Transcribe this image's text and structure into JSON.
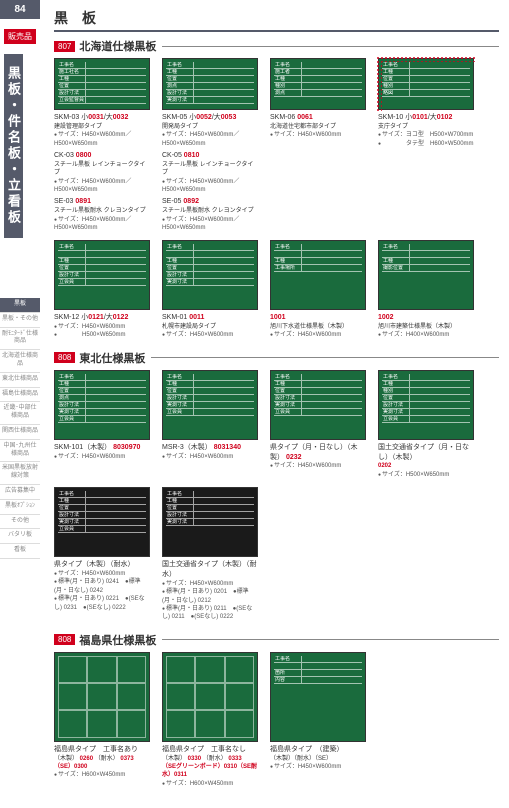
{
  "page_number": "84",
  "sale_tag": "販売品",
  "vertical_title": "黒板・件名板・立看板",
  "page_title": "黒　板",
  "nav": [
    {
      "label": "黒板",
      "active": true
    },
    {
      "label": "黒板・その他"
    },
    {
      "label": "耐ﾓﾆﾀｰﾄﾞ仕様商品"
    },
    {
      "label": "北海道仕様商品"
    },
    {
      "label": "東北仕様商品"
    },
    {
      "label": "福島仕様商品"
    },
    {
      "label": "近畿･中部仕様商品"
    },
    {
      "label": "関西仕様商品"
    },
    {
      "label": "中国･九州仕様商品"
    },
    {
      "label": "米国黒板放射線対策"
    },
    {
      "label": "広告募集中"
    },
    {
      "label": "黒板ｵﾌﾟｼｮﾝ"
    },
    {
      "label": "その他"
    },
    {
      "label": "バタリ板"
    },
    {
      "label": "看板"
    }
  ],
  "sections": [
    {
      "num": "807",
      "title": "北海道仕様黒板",
      "cards": [
        {
          "board": {
            "bg": "green",
            "h": "short",
            "dots": false,
            "rows": [
              "工事名",
              "施工社名",
              "工種",
              "位置",
              "設計寸法",
              "立会監督員"
            ]
          },
          "model": "SKM-03  小",
          "codes": "0031",
          "model2": "/大",
          "codes2": "0032",
          "desc": "建設管理部タイプ",
          "lines": [
            "サイズ：H450×W600mm／H500×W650mm"
          ],
          "sub": [
            {
              "model": "CK-03 ",
              "code": "0800",
              "desc": "スチール黒板 レインチョークタイプ",
              "line": "サイズ：H450×W600mm／H500×W650mm"
            },
            {
              "model": "SE-03 ",
              "code": "0891",
              "desc": "スチール黒板耐水 クレヨンタイプ",
              "line": "サイズ：H450×W600mm／H500×W650mm"
            }
          ]
        },
        {
          "board": {
            "bg": "green",
            "h": "short",
            "dots": false,
            "rows": [
              "工事名",
              "工種",
              "位置",
              "測点",
              "設計寸法",
              "実測寸法"
            ]
          },
          "model": "SKM-05  小",
          "codes": "0052",
          "model2": "/大",
          "codes2": "0053",
          "desc": "開発局タイプ",
          "lines": [
            "サイズ：H450×W600mm／H500×W650mm"
          ],
          "sub": [
            {
              "model": "CK-05 ",
              "code": "0810",
              "desc": "スチール黒板 レインチョークタイプ",
              "line": "サイズ：H450×W600mm／H500×W650mm"
            },
            {
              "model": "SE-05 ",
              "code": "0892",
              "desc": "スチール黒板耐水 クレヨンタイプ",
              "line": "サイズ：H450×W600mm／H500×W650mm"
            }
          ]
        },
        {
          "board": {
            "bg": "green",
            "h": "short",
            "dots": false,
            "rows": [
              "工事名",
              "施工者",
              "工種",
              "種別",
              "測点"
            ]
          },
          "model": "SKM-06  ",
          "codes": "0061",
          "desc": "北海道住宅都市部タイプ",
          "lines": [
            "サイズ：H450×W600mm"
          ]
        },
        {
          "board": {
            "bg": "green",
            "h": "short",
            "dots": true,
            "rows": [
              "工事名",
              "工種",
              "位置",
              "種別",
              "略図"
            ],
            "extra_right": true
          },
          "model": "SKM-10  小",
          "codes": "0101",
          "model2": "/大",
          "codes2": "0102",
          "desc": "支庁タイプ",
          "lines": [
            "サイズ：ヨコ型　H500×W700mm",
            "　　　　タテ型　H600×W500mm"
          ]
        },
        {
          "board": {
            "bg": "green",
            "h": "tall",
            "dots": false,
            "rows": [
              "工事名",
              "",
              "工種",
              "位置",
              "設計寸法",
              "立会員"
            ]
          },
          "model": "SKM-12  小",
          "codes": "0121",
          "model2": "/大",
          "codes2": "0122",
          "lines": [
            "サイズ：H450×W600mm",
            "　　　　H500×W650mm"
          ]
        },
        {
          "board": {
            "bg": "green",
            "h": "tall",
            "dots": false,
            "rows": [
              "工事名",
              "",
              "工種",
              "位置",
              "設計寸法",
              "実測寸法"
            ]
          },
          "model": "SKM-01 ",
          "codes": "0011",
          "desc": "札幌市建設局タイプ",
          "lines": [
            "サイズ：H450×W600mm"
          ]
        },
        {
          "board": {
            "bg": "green",
            "h": "tall",
            "dots": false,
            "rows": [
              "工事名",
              "",
              "工種",
              "工事場所"
            ]
          },
          "model": "",
          "codes": "1001",
          "desc": "旭川下水道仕様黒板（木製）",
          "lines": [
            "サイズ：H450×W600mm"
          ]
        },
        {
          "board": {
            "bg": "green",
            "h": "tall",
            "dots": false,
            "rows": [
              "工事名",
              "",
              "工種",
              "撮影位置"
            ]
          },
          "model": "",
          "codes": "1002",
          "desc": "旭川市建築仕様黒板（木製）",
          "lines": [
            "サイズ：H400×W600mm"
          ]
        }
      ]
    },
    {
      "num": "808",
      "title": "東北仕様黒板",
      "cards": [
        {
          "board": {
            "bg": "green",
            "h": "tall",
            "dots": false,
            "rows": [
              "工事名",
              "工種",
              "位置",
              "測点",
              "設計寸法",
              "実測寸法",
              "立会員"
            ]
          },
          "model": "SKM-101（木製） ",
          "codes": "8030970",
          "lines": [
            "サイズ：H450×W600mm"
          ]
        },
        {
          "board": {
            "bg": "green",
            "h": "tall",
            "dots": false,
            "rows": [
              "工事名",
              "工種",
              "位置",
              "設計寸法",
              "実測寸法",
              "立会員"
            ]
          },
          "model": "MSR-3（木製） ",
          "codes": "8031340",
          "lines": [
            "サイズ：H450×W600mm"
          ]
        },
        {
          "board": {
            "bg": "green",
            "h": "tall",
            "dots": false,
            "rows": [
              "工事名",
              "工種",
              "位置",
              "設計寸法",
              "実測寸法",
              "立会員"
            ]
          },
          "model": "県タイプ（月・日なし）（木製） ",
          "codes": "0232",
          "lines": [
            "サイズ：H450×W600mm"
          ]
        },
        {
          "board": {
            "bg": "green",
            "h": "tall",
            "dots": false,
            "rows": [
              "工事名",
              "工種",
              "種別",
              "位置",
              "設計寸法",
              "実測寸法",
              "立会員"
            ]
          },
          "model": "国土交通省タイプ（月・日なし）（木製）",
          "lines": [
            "サイズ：H500×W650mm"
          ],
          "model2_line": "0202"
        },
        {
          "board": {
            "bg": "black",
            "h": "tall",
            "dots": false,
            "rows": [
              "工事名",
              "工種",
              "位置",
              "設計寸法",
              "実測寸法",
              "立会員"
            ]
          },
          "model": "県タイプ（木製）（耐水）",
          "lines": [
            "サイズ：H450×W600mm",
            "標準(月・日あり) 0241　●標準(月・日なし) 0242",
            "標準(月・日あり) 0221　●(SEなし) 0231　●(SEなし) 0222"
          ]
        },
        {
          "board": {
            "bg": "black",
            "h": "tall",
            "dots": false,
            "rows": [
              "工事名",
              "工種",
              "位置",
              "設計寸法",
              "実測寸法"
            ]
          },
          "model": "国土交通省タイプ（木製）（耐水）",
          "lines": [
            "サイズ：H450×W600mm",
            "標準(月・日あり) 0201　●標準(月・日なし) 0212",
            "標準(月・日あり) 0211　●(SEなし) 0211　●(SEなし) 0222"
          ]
        }
      ]
    },
    {
      "num": "808",
      "title": "福島県仕様黒板",
      "cards": [
        {
          "board": {
            "bg": "green",
            "h": "xtall",
            "dots": false,
            "rows": [],
            "grid3": true
          },
          "model": "福島県タイプ　工事名あり",
          "desc_lines": [
            "（木製）",
            " 0260 ",
            "（耐水）",
            " 0373"
          ],
          "extra": "（SE）0300",
          "lines": [
            "サイズ：H600×W450mm"
          ]
        },
        {
          "board": {
            "bg": "green",
            "h": "xtall",
            "dots": false,
            "rows": [],
            "grid3": true
          },
          "model": "福島県タイプ　工事名なし",
          "desc_lines": [
            "（木製）",
            " 0330 ",
            "（耐水）",
            " 0333"
          ],
          "extra": "（SEグリーンボード）0310（SE耐水）0311",
          "lines": [
            "サイズ：H600×W450mm"
          ]
        },
        {
          "board": {
            "bg": "green",
            "h": "xtall",
            "dots": false,
            "rows": [
              "工事名",
              "",
              "箇所",
              "内容"
            ]
          },
          "model": "福島県タイプ　（建築）",
          "desc_lines": [
            "（木製）（耐水）（SE）"
          ],
          "lines": [
            "サイズ：H450×W600mm"
          ]
        }
      ]
    }
  ]
}
